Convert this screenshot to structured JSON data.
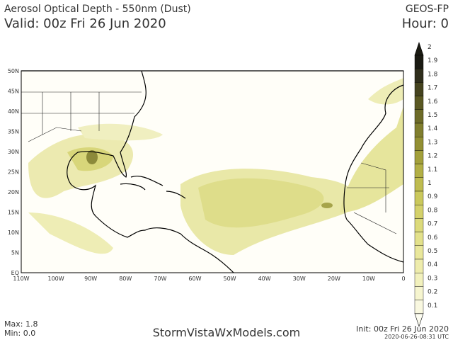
{
  "header": {
    "title": "Aerosol Optical Depth - 550nm (Dust)",
    "valid": "Valid: 00z Fri 26 Jun 2020",
    "model": "GEOS-FP",
    "hour": "Hour: 0"
  },
  "map": {
    "lat_labels": [
      "50N",
      "45N",
      "40N",
      "35N",
      "30N",
      "25N",
      "20N",
      "15N",
      "10N",
      "5N",
      "EQ"
    ],
    "lon_labels": [
      "110W",
      "100W",
      "90W",
      "80W",
      "70W",
      "60W",
      "50W",
      "40W",
      "30W",
      "20W",
      "10W",
      "0"
    ]
  },
  "colorbar": {
    "ticks": [
      2,
      1.9,
      1.8,
      1.7,
      1.6,
      1.5,
      1.4,
      1.3,
      1.2,
      1.1,
      1,
      0.9,
      0.8,
      0.7,
      0.6,
      0.5,
      0.4,
      0.3,
      0.2,
      0.1
    ]
  },
  "footer": {
    "max": "Max: 1.8",
    "min": "Min: 0.0",
    "site": "StormVistaWxModels.com",
    "init": "Init: 00z Fri 26 Jun 2020",
    "timestamp": "2020-06-26-08:31 UTC"
  }
}
